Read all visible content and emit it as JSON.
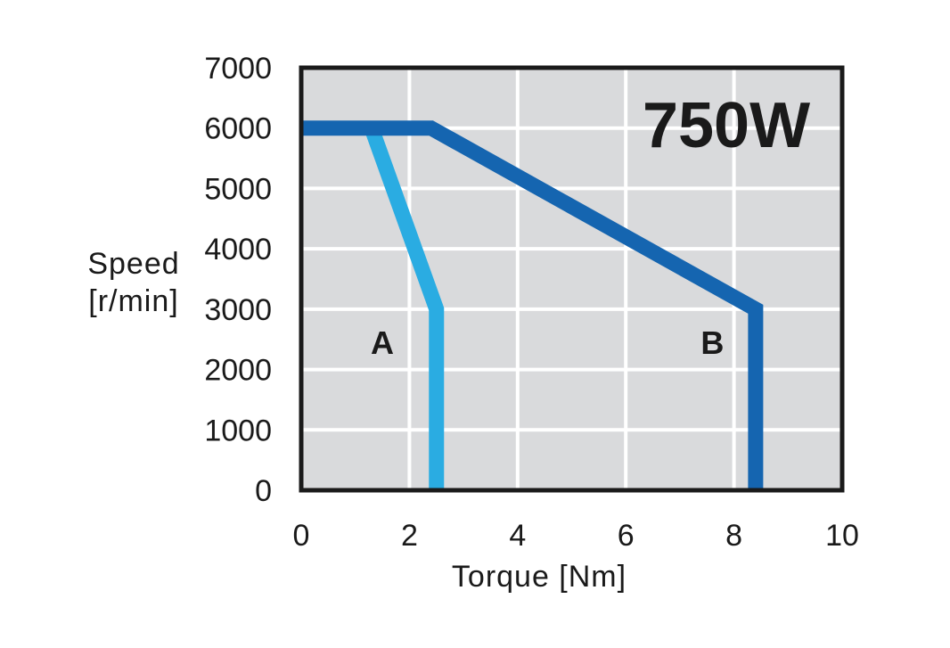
{
  "chart_data": {
    "type": "line",
    "title": "750W",
    "xlabel": "Torque [Nm]",
    "ylabel": [
      "Speed",
      "[r/min]"
    ],
    "xlim": [
      0,
      10
    ],
    "ylim": [
      0,
      7000
    ],
    "x_ticks": [
      0,
      2,
      4,
      6,
      8,
      10
    ],
    "y_ticks": [
      0,
      1000,
      2000,
      3000,
      4000,
      5000,
      6000,
      7000
    ],
    "grid": true,
    "series": [
      {
        "name": "A",
        "color": "#2aace2",
        "points": [
          [
            1.3,
            6000
          ],
          [
            2.5,
            3000
          ],
          [
            2.5,
            0
          ]
        ]
      },
      {
        "name": "B",
        "color": "#1565b0",
        "points": [
          [
            0,
            6000
          ],
          [
            2.4,
            6000
          ],
          [
            8.4,
            3000
          ],
          [
            8.4,
            0
          ]
        ]
      }
    ],
    "series_labels": [
      {
        "text": "A",
        "x": 1.5,
        "y": 2450
      },
      {
        "text": "B",
        "x": 7.6,
        "y": 2450
      }
    ]
  }
}
